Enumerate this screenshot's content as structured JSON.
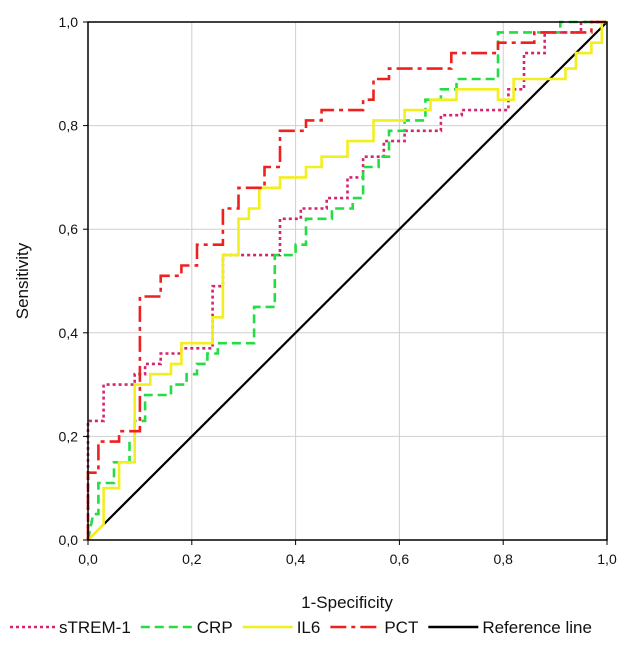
{
  "chart_data": {
    "type": "line",
    "title": "",
    "xlabel": "1-Specificity",
    "ylabel": "Sensitivity",
    "xlim": [
      0,
      1
    ],
    "ylim": [
      0,
      1
    ],
    "xticks": [
      "0,0",
      "0,2",
      "0,4",
      "0,6",
      "0,8",
      "1,0"
    ],
    "yticks": [
      "0,0",
      "0,2",
      "0,4",
      "0,6",
      "0,8",
      "1,0"
    ],
    "grid": true,
    "legend": "bottom",
    "series": [
      {
        "name": "sTREM-1",
        "color": "#d6246e",
        "dash": "dotted",
        "points": [
          [
            0,
            0
          ],
          [
            0,
            0.23
          ],
          [
            0.03,
            0.23
          ],
          [
            0.03,
            0.3
          ],
          [
            0.09,
            0.3
          ],
          [
            0.09,
            0.32
          ],
          [
            0.11,
            0.32
          ],
          [
            0.11,
            0.34
          ],
          [
            0.14,
            0.34
          ],
          [
            0.14,
            0.36
          ],
          [
            0.18,
            0.36
          ],
          [
            0.18,
            0.37
          ],
          [
            0.24,
            0.37
          ],
          [
            0.24,
            0.49
          ],
          [
            0.26,
            0.49
          ],
          [
            0.26,
            0.55
          ],
          [
            0.37,
            0.55
          ],
          [
            0.37,
            0.62
          ],
          [
            0.41,
            0.62
          ],
          [
            0.41,
            0.64
          ],
          [
            0.46,
            0.64
          ],
          [
            0.46,
            0.66
          ],
          [
            0.5,
            0.66
          ],
          [
            0.5,
            0.7
          ],
          [
            0.53,
            0.7
          ],
          [
            0.53,
            0.74
          ],
          [
            0.57,
            0.74
          ],
          [
            0.57,
            0.77
          ],
          [
            0.61,
            0.77
          ],
          [
            0.61,
            0.79
          ],
          [
            0.68,
            0.79
          ],
          [
            0.68,
            0.82
          ],
          [
            0.72,
            0.82
          ],
          [
            0.72,
            0.83
          ],
          [
            0.81,
            0.83
          ],
          [
            0.81,
            0.87
          ],
          [
            0.84,
            0.87
          ],
          [
            0.84,
            0.94
          ],
          [
            0.88,
            0.94
          ],
          [
            0.88,
            0.98
          ],
          [
            0.95,
            0.98
          ],
          [
            0.95,
            1.0
          ],
          [
            1.0,
            1.0
          ]
        ]
      },
      {
        "name": "CRP",
        "color": "#22dd44",
        "dash": "dashed",
        "points": [
          [
            0,
            0
          ],
          [
            0.01,
            0.05
          ],
          [
            0.02,
            0.05
          ],
          [
            0.02,
            0.11
          ],
          [
            0.05,
            0.11
          ],
          [
            0.05,
            0.15
          ],
          [
            0.08,
            0.15
          ],
          [
            0.08,
            0.19
          ],
          [
            0.09,
            0.19
          ],
          [
            0.09,
            0.23
          ],
          [
            0.11,
            0.23
          ],
          [
            0.11,
            0.28
          ],
          [
            0.16,
            0.28
          ],
          [
            0.16,
            0.3
          ],
          [
            0.19,
            0.3
          ],
          [
            0.19,
            0.32
          ],
          [
            0.21,
            0.32
          ],
          [
            0.21,
            0.34
          ],
          [
            0.23,
            0.34
          ],
          [
            0.23,
            0.36
          ],
          [
            0.25,
            0.36
          ],
          [
            0.25,
            0.38
          ],
          [
            0.32,
            0.38
          ],
          [
            0.32,
            0.45
          ],
          [
            0.36,
            0.45
          ],
          [
            0.36,
            0.55
          ],
          [
            0.4,
            0.55
          ],
          [
            0.4,
            0.57
          ],
          [
            0.42,
            0.57
          ],
          [
            0.42,
            0.62
          ],
          [
            0.47,
            0.62
          ],
          [
            0.47,
            0.64
          ],
          [
            0.51,
            0.64
          ],
          [
            0.51,
            0.66
          ],
          [
            0.53,
            0.66
          ],
          [
            0.53,
            0.72
          ],
          [
            0.56,
            0.72
          ],
          [
            0.56,
            0.74
          ],
          [
            0.58,
            0.74
          ],
          [
            0.58,
            0.79
          ],
          [
            0.61,
            0.79
          ],
          [
            0.61,
            0.81
          ],
          [
            0.65,
            0.81
          ],
          [
            0.65,
            0.85
          ],
          [
            0.68,
            0.85
          ],
          [
            0.68,
            0.87
          ],
          [
            0.71,
            0.87
          ],
          [
            0.71,
            0.89
          ],
          [
            0.79,
            0.89
          ],
          [
            0.79,
            0.98
          ],
          [
            0.91,
            0.98
          ],
          [
            0.91,
            1.0
          ],
          [
            1.0,
            1.0
          ]
        ]
      },
      {
        "name": "IL6",
        "color": "#f2ef1f",
        "dash": "solid",
        "points": [
          [
            0,
            0
          ],
          [
            0.03,
            0.03
          ],
          [
            0.03,
            0.1
          ],
          [
            0.06,
            0.1
          ],
          [
            0.06,
            0.15
          ],
          [
            0.09,
            0.15
          ],
          [
            0.09,
            0.3
          ],
          [
            0.12,
            0.3
          ],
          [
            0.12,
            0.32
          ],
          [
            0.16,
            0.32
          ],
          [
            0.16,
            0.34
          ],
          [
            0.18,
            0.34
          ],
          [
            0.18,
            0.38
          ],
          [
            0.24,
            0.38
          ],
          [
            0.24,
            0.43
          ],
          [
            0.26,
            0.43
          ],
          [
            0.26,
            0.55
          ],
          [
            0.29,
            0.55
          ],
          [
            0.29,
            0.62
          ],
          [
            0.31,
            0.62
          ],
          [
            0.31,
            0.64
          ],
          [
            0.33,
            0.64
          ],
          [
            0.33,
            0.68
          ],
          [
            0.37,
            0.68
          ],
          [
            0.37,
            0.7
          ],
          [
            0.42,
            0.7
          ],
          [
            0.42,
            0.72
          ],
          [
            0.45,
            0.72
          ],
          [
            0.45,
            0.74
          ],
          [
            0.5,
            0.74
          ],
          [
            0.5,
            0.77
          ],
          [
            0.55,
            0.77
          ],
          [
            0.55,
            0.81
          ],
          [
            0.61,
            0.81
          ],
          [
            0.61,
            0.83
          ],
          [
            0.66,
            0.83
          ],
          [
            0.66,
            0.85
          ],
          [
            0.71,
            0.85
          ],
          [
            0.71,
            0.87
          ],
          [
            0.79,
            0.87
          ],
          [
            0.79,
            0.85
          ],
          [
            0.82,
            0.85
          ],
          [
            0.82,
            0.89
          ],
          [
            0.92,
            0.89
          ],
          [
            0.92,
            0.91
          ],
          [
            0.94,
            0.91
          ],
          [
            0.94,
            0.94
          ],
          [
            0.97,
            0.94
          ],
          [
            0.97,
            0.96
          ],
          [
            0.99,
            0.96
          ],
          [
            0.99,
            1.0
          ],
          [
            1.0,
            1.0
          ]
        ]
      },
      {
        "name": "PCT",
        "color": "#ee2020",
        "dash": "dashdot",
        "points": [
          [
            0,
            0
          ],
          [
            0,
            0.13
          ],
          [
            0.02,
            0.13
          ],
          [
            0.02,
            0.19
          ],
          [
            0.06,
            0.19
          ],
          [
            0.06,
            0.21
          ],
          [
            0.1,
            0.21
          ],
          [
            0.1,
            0.47
          ],
          [
            0.14,
            0.47
          ],
          [
            0.14,
            0.51
          ],
          [
            0.18,
            0.51
          ],
          [
            0.18,
            0.53
          ],
          [
            0.21,
            0.53
          ],
          [
            0.21,
            0.57
          ],
          [
            0.26,
            0.57
          ],
          [
            0.26,
            0.64
          ],
          [
            0.29,
            0.64
          ],
          [
            0.29,
            0.68
          ],
          [
            0.34,
            0.68
          ],
          [
            0.34,
            0.72
          ],
          [
            0.37,
            0.72
          ],
          [
            0.37,
            0.79
          ],
          [
            0.42,
            0.79
          ],
          [
            0.42,
            0.81
          ],
          [
            0.45,
            0.81
          ],
          [
            0.45,
            0.83
          ],
          [
            0.53,
            0.83
          ],
          [
            0.53,
            0.85
          ],
          [
            0.55,
            0.85
          ],
          [
            0.55,
            0.89
          ],
          [
            0.58,
            0.89
          ],
          [
            0.58,
            0.91
          ],
          [
            0.7,
            0.91
          ],
          [
            0.7,
            0.94
          ],
          [
            0.79,
            0.94
          ],
          [
            0.79,
            0.96
          ],
          [
            0.86,
            0.96
          ],
          [
            0.86,
            0.98
          ],
          [
            0.97,
            0.98
          ],
          [
            0.97,
            1.0
          ],
          [
            1.0,
            1.0
          ]
        ]
      },
      {
        "name": "Reference line",
        "color": "#000000",
        "dash": "solid",
        "points": [
          [
            0,
            0
          ],
          [
            1,
            1
          ]
        ]
      }
    ]
  }
}
